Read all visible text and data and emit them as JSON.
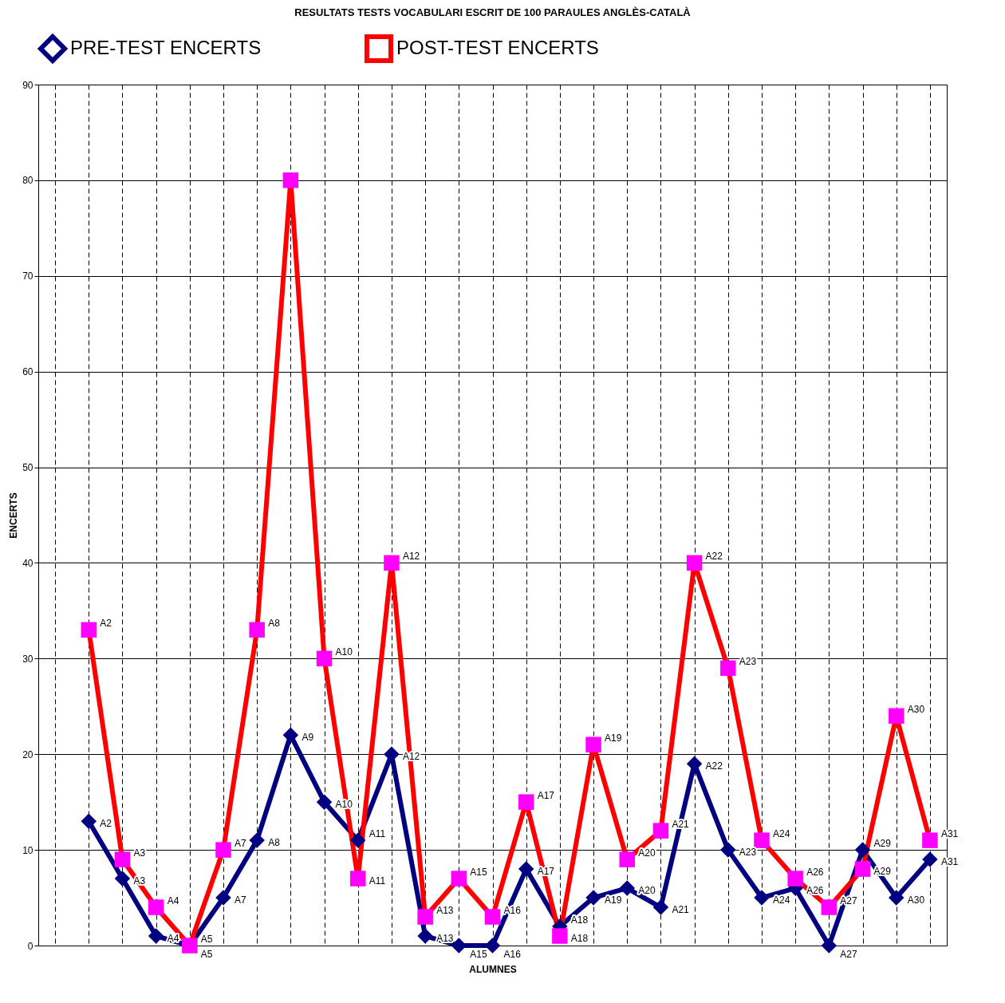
{
  "chart_data": {
    "type": "line",
    "title": "RESULTATS TESTS VOCABULARI ESCRIT DE 100 PARAULES ANGLÈS-CATALÀ",
    "xlabel": "ALUMNES",
    "ylabel": "ENCERTS",
    "categories": [
      null,
      null,
      null,
      null,
      null,
      null,
      null,
      null,
      null,
      null,
      null,
      null,
      null,
      null,
      null,
      null,
      null,
      null,
      null,
      null,
      null,
      null,
      null,
      null,
      null,
      null,
      null
    ],
    "ylim": [
      0,
      90
    ],
    "yticks": [
      0,
      10,
      20,
      30,
      40,
      50,
      60,
      70,
      80,
      90
    ],
    "grid": true,
    "legend": "top",
    "series": [
      {
        "name": "PRE-TEST ENCERTS",
        "color": "#000080",
        "marker": "diamond",
        "values": [
          null,
          13,
          7,
          1,
          0,
          5,
          11,
          22,
          15,
          11,
          20,
          1,
          0,
          0,
          8,
          2,
          5,
          6,
          4,
          19,
          10,
          5,
          6,
          0,
          10,
          5,
          9
        ],
        "value_labels": [
          null,
          "A2",
          "A3",
          "A4",
          "A5",
          "A7",
          "A8",
          "A9",
          "A10",
          "A11",
          "A12",
          "A13",
          "A15",
          "A16",
          "A17",
          "A18",
          "A19",
          "A20",
          "A21",
          "A22",
          "A23",
          "A24",
          "A26",
          "A27",
          "A29",
          "A30",
          "A31"
        ]
      },
      {
        "name": "POST-TEST ENCERTS",
        "color": "#ff0000",
        "colors": [
          "#ff00ff",
          "#ff00ff",
          "#ff00ff",
          "#ff00ff",
          "#ff00ff",
          "#ff00ff",
          "#ff00ff",
          "#ff00ff",
          "#ff00ff",
          "#ff00ff",
          "#ff00ff",
          "#ff00ff",
          "#ff00ff",
          "#ff00ff",
          "#ff00ff",
          "#ff00ff",
          "#ff00ff",
          "#ff00ff",
          "#ff00ff",
          "#ff00ff",
          "#ff00ff",
          "#ff00ff",
          "#ff00ff",
          "#ff00ff",
          "#ff00ff",
          "#ff00ff",
          "#ff00ff"
        ],
        "marker": "square",
        "values": [
          null,
          33,
          9,
          4,
          0,
          10,
          33,
          80,
          30,
          7,
          40,
          3,
          7,
          3,
          15,
          1,
          21,
          9,
          12,
          40,
          29,
          11,
          7,
          4,
          8,
          24,
          11
        ],
        "value_labels": [
          null,
          "A2",
          "A3",
          "A4",
          "A5",
          "A7",
          "A8",
          null,
          "A10",
          "A11",
          "A12",
          "A13",
          "A15",
          "A16",
          "A17",
          "A18",
          "A19",
          "A20",
          "A21",
          "A22",
          "A23",
          "A24",
          "A26",
          "A27",
          "A29",
          "A30",
          "A31"
        ]
      }
    ]
  }
}
